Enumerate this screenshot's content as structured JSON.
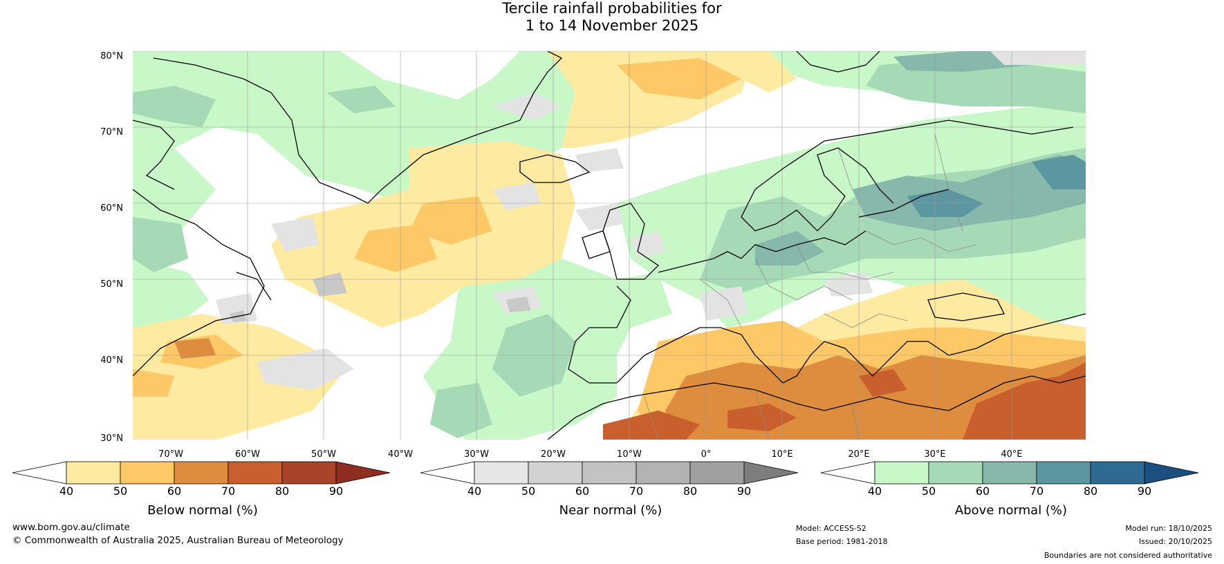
{
  "title_line1": "Tercile rainfall probabilities for",
  "title_line2": "1 to 14 November 2025",
  "lat_labels": [
    "80°N",
    "70°N",
    "60°N",
    "50°N",
    "40°N",
    "30°N"
  ],
  "lon_labels": [
    "70°W",
    "60°W",
    "50°W",
    "40°W",
    "30°W",
    "20°W",
    "10°W",
    "0°",
    "10°E",
    "20°E",
    "30°E",
    "40°E"
  ],
  "colorbars": [
    {
      "title": "Below normal (%)",
      "ticks": [
        "40",
        "50",
        "60",
        "70",
        "80",
        "90"
      ],
      "colors": [
        "#ffffff",
        "#feeaa0",
        "#fdc865",
        "#de8c3e",
        "#c95f2c",
        "#a9442b",
        "#8f2d20"
      ]
    },
    {
      "title": "Near normal (%)",
      "ticks": [
        "40",
        "50",
        "60",
        "70",
        "80",
        "90"
      ],
      "colors": [
        "#ffffff",
        "#e6e6e6",
        "#d2d2d2",
        "#c3c3c3",
        "#b3b3b3",
        "#a0a0a0",
        "#7d7d7d"
      ]
    },
    {
      "title": "Above normal (%)",
      "ticks": [
        "40",
        "50",
        "60",
        "70",
        "80",
        "90"
      ],
      "colors": [
        "#ffffff",
        "#c8f7c8",
        "#a6d9b6",
        "#86b8ab",
        "#5c96a1",
        "#2f6a93",
        "#1b4f80"
      ]
    }
  ],
  "footer": {
    "website": "www.bom.gov.au/climate",
    "copyright": "© Commonwealth of Australia 2025, Australian Bureau of Meteorology",
    "model": "Model: ACCESS-S2",
    "base_period": "Base period: 1981-2018",
    "model_run": "Model run: 18/10/2025",
    "issued": "Issued: 20/10/2025",
    "disclaimer": "Boundaries are not considered authoritative"
  }
}
